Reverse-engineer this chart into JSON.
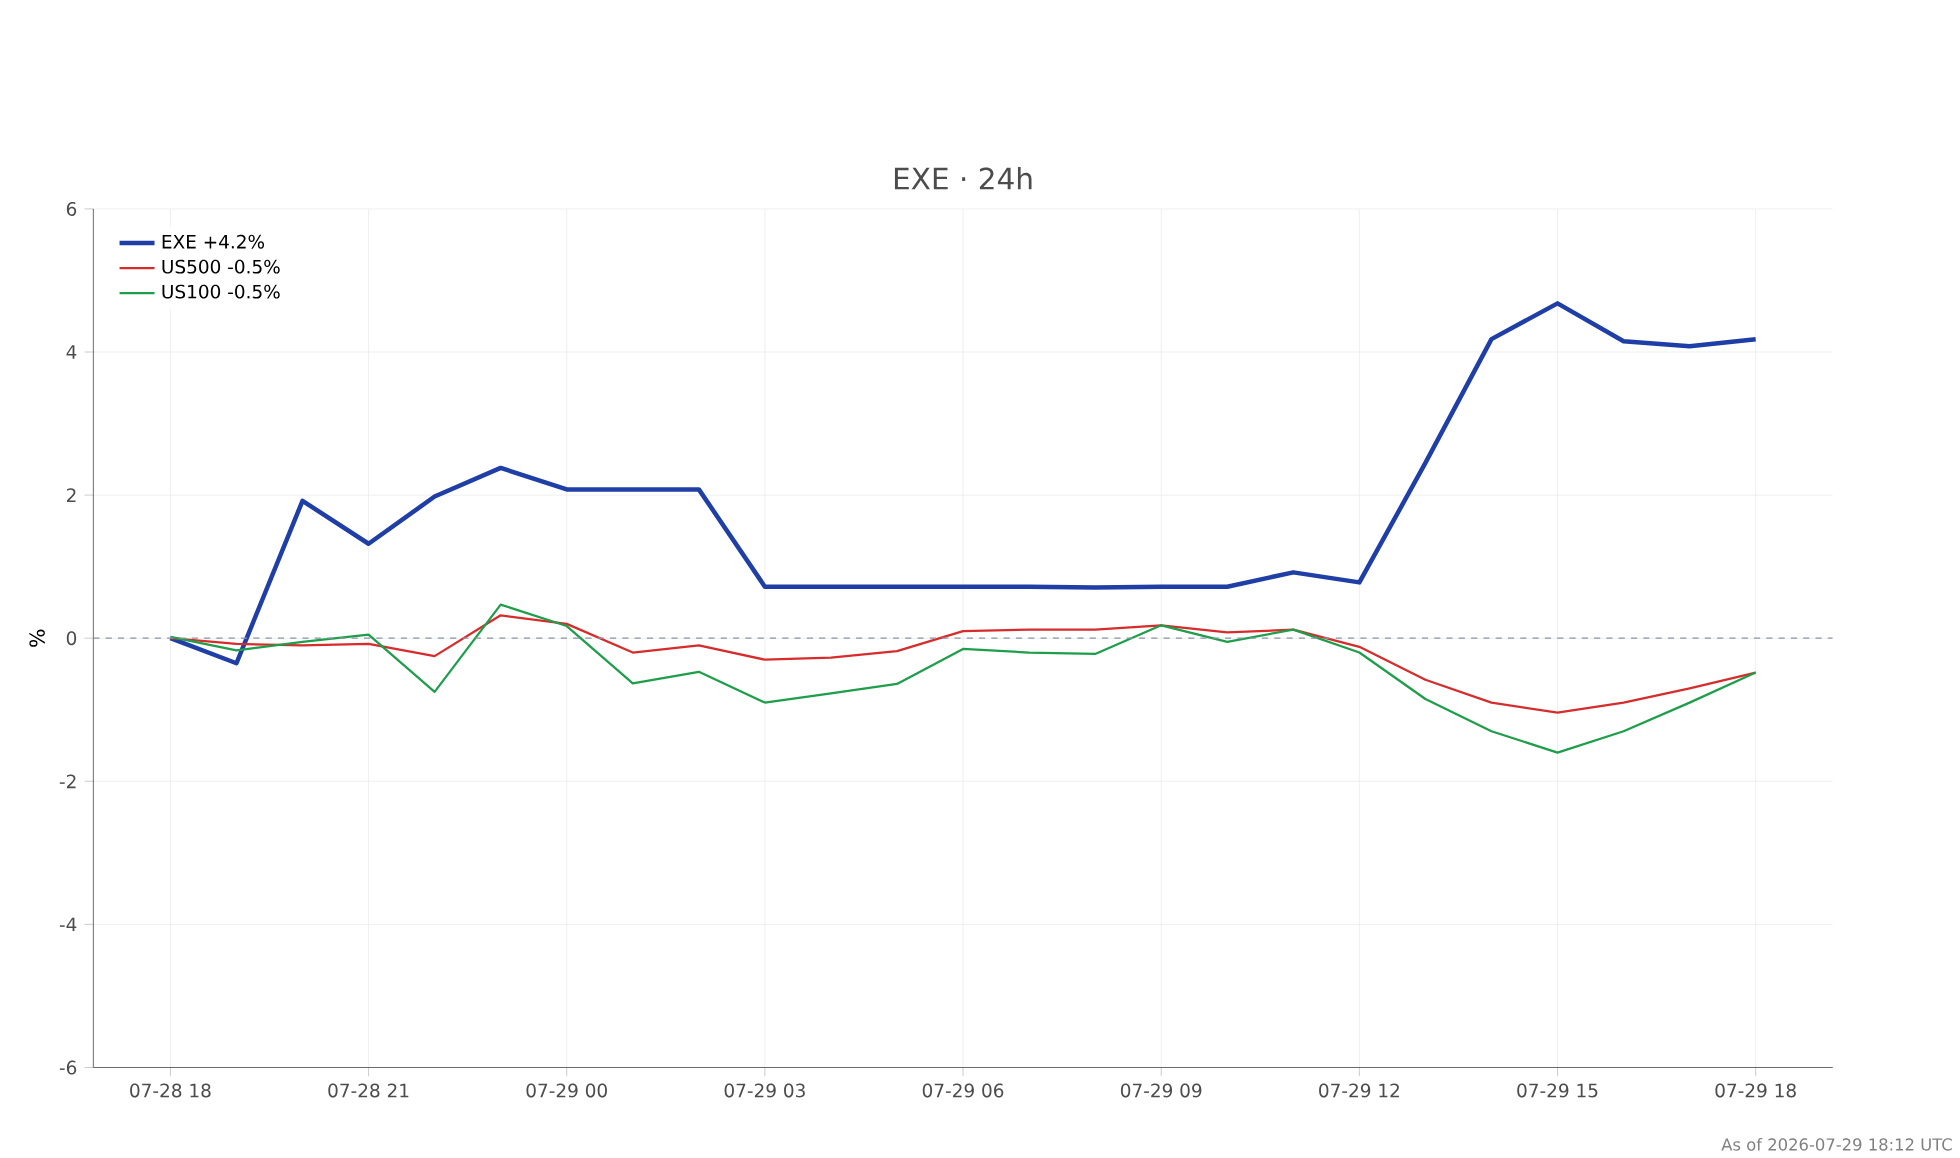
{
  "chart_data": {
    "type": "line",
    "title": "EXE · 24h",
    "ylabel": "%",
    "x": [
      "2026-07-28T18:00",
      "2026-07-28T19:00",
      "2026-07-28T20:00",
      "2026-07-28T21:00",
      "2026-07-28T22:00",
      "2026-07-28T23:00",
      "2026-07-29T00:00",
      "2026-07-29T01:00",
      "2026-07-29T02:00",
      "2026-07-29T03:00",
      "2026-07-29T04:00",
      "2026-07-29T05:00",
      "2026-07-29T06:00",
      "2026-07-29T07:00",
      "2026-07-29T08:00",
      "2026-07-29T09:00",
      "2026-07-29T10:00",
      "2026-07-29T11:00",
      "2026-07-29T12:00",
      "2026-07-29T13:00",
      "2026-07-29T14:00",
      "2026-07-29T15:00",
      "2026-07-29T16:00",
      "2026-07-29T17:00",
      "2026-07-29T18:00"
    ],
    "series": [
      {
        "name": "EXE +4.2%",
        "color": "#1f3fa6",
        "values": [
          0,
          -0.35,
          1.92,
          1.32,
          1.98,
          2.38,
          2.08,
          2.08,
          2.08,
          0.72,
          0.72,
          0.72,
          0.72,
          0.72,
          0.71,
          0.72,
          0.72,
          0.92,
          0.78,
          2.45,
          4.18,
          4.68,
          4.15,
          4.08,
          4.18
        ]
      },
      {
        "name": "US500 -0.5%",
        "color": "#d62c2c",
        "values": [
          0,
          -0.08,
          -0.1,
          -0.08,
          -0.25,
          0.32,
          0.2,
          -0.2,
          -0.1,
          -0.3,
          -0.27,
          -0.18,
          0.1,
          0.12,
          0.12,
          0.18,
          0.08,
          0.12,
          -0.12,
          -0.58,
          -0.9,
          -1.04,
          -0.9,
          -0.7,
          -0.48
        ]
      },
      {
        "name": "US100 -0.5%",
        "color": "#1e9e4a",
        "values": [
          0.02,
          -0.17,
          -0.05,
          0.05,
          -0.75,
          0.47,
          0.17,
          -0.63,
          -0.47,
          -0.9,
          -0.77,
          -0.64,
          -0.15,
          -0.2,
          -0.22,
          0.18,
          -0.05,
          0.12,
          -0.2,
          -0.85,
          -1.3,
          -1.6,
          -1.3,
          -0.9,
          -0.48
        ]
      }
    ],
    "xlim": [
      "2026-07-28T16:50",
      "2026-07-29T19:10"
    ],
    "xticks": [
      {
        "value": "2026-07-28T18:00",
        "label": "07-28 18"
      },
      {
        "value": "2026-07-28T21:00",
        "label": "07-28 21"
      },
      {
        "value": "2026-07-29T00:00",
        "label": "07-29 00"
      },
      {
        "value": "2026-07-29T03:00",
        "label": "07-29 03"
      },
      {
        "value": "2026-07-29T06:00",
        "label": "07-29 06"
      },
      {
        "value": "2026-07-29T09:00",
        "label": "07-29 09"
      },
      {
        "value": "2026-07-29T12:00",
        "label": "07-29 12"
      },
      {
        "value": "2026-07-29T15:00",
        "label": "07-29 15"
      },
      {
        "value": "2026-07-29T18:00",
        "label": "07-29 18"
      }
    ],
    "ylim": [
      -6,
      6
    ],
    "yticks": [
      -6,
      -4,
      -2,
      0,
      2,
      4,
      6
    ],
    "ref_lines": [
      {
        "axis": "y",
        "value": 0,
        "color": "#8a94a6",
        "line_style": "dashed"
      }
    ],
    "grid": true,
    "legend": "top left",
    "annotations": [
      "As of 2026-07-29 18:12 UTC"
    ]
  }
}
